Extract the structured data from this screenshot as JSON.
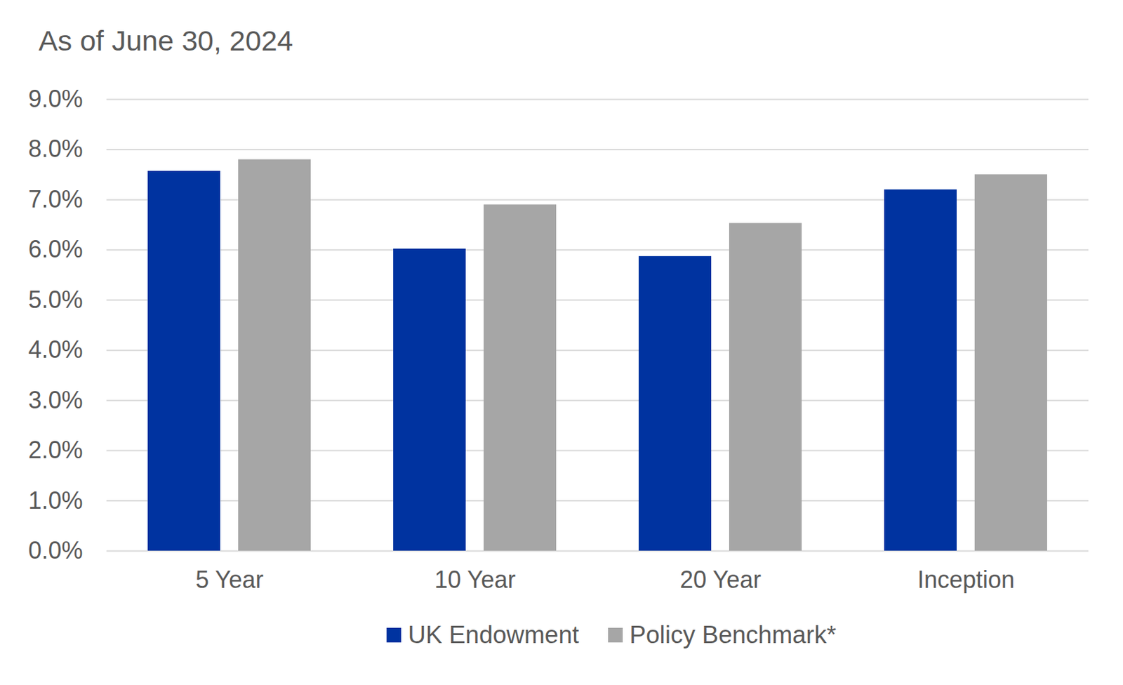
{
  "chart_data": {
    "type": "bar",
    "title": "As of June 30, 2024",
    "categories": [
      "5 Year",
      "10 Year",
      "20 Year",
      "Inception"
    ],
    "series": [
      {
        "name": "UK Endowment",
        "color": "#0033a0",
        "values": [
          7.57,
          6.02,
          5.87,
          7.2
        ]
      },
      {
        "name": "Policy Benchmark*",
        "color": "#a6a6a6",
        "values": [
          7.8,
          6.9,
          6.53,
          7.5
        ]
      }
    ],
    "ylim": [
      0,
      9
    ],
    "yticks": [
      {
        "value": 0,
        "label": "0.0%"
      },
      {
        "value": 1,
        "label": "1.0%"
      },
      {
        "value": 2,
        "label": "2.0%"
      },
      {
        "value": 3,
        "label": "3.0%"
      },
      {
        "value": 4,
        "label": "4.0%"
      },
      {
        "value": 5,
        "label": "5.0%"
      },
      {
        "value": 6,
        "label": "6.0%"
      },
      {
        "value": 7,
        "label": "7.0%"
      },
      {
        "value": 8,
        "label": "8.0%"
      },
      {
        "value": 9,
        "label": "9.0%"
      }
    ],
    "grid": true,
    "legend": "bottom"
  }
}
